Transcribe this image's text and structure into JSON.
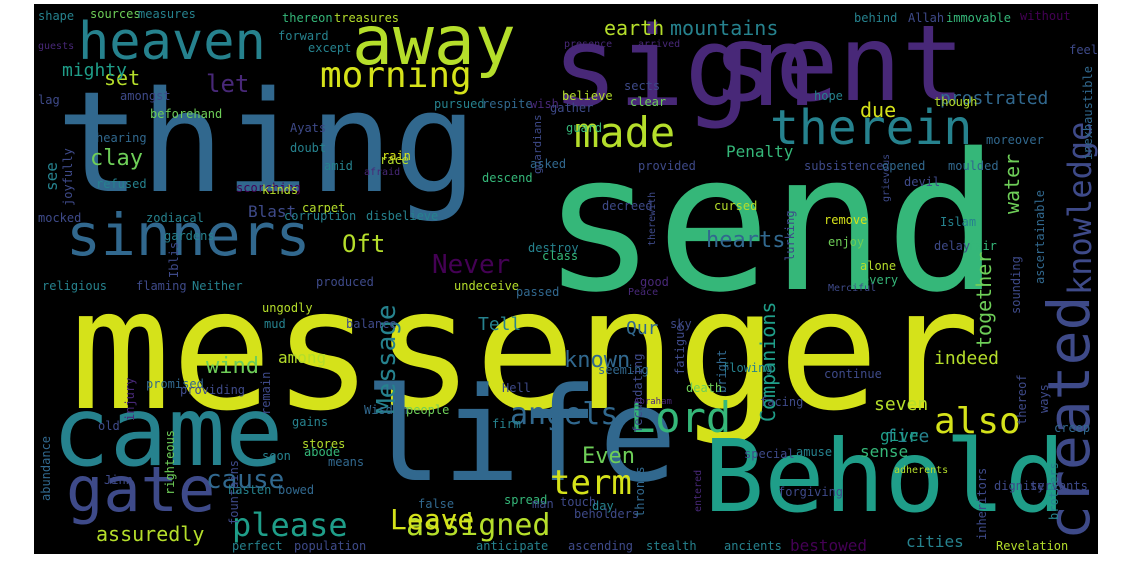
{
  "image": {
    "background": "#000000",
    "palette": {
      "dark_purple": "#440154",
      "purple": "#482878",
      "indigo": "#3e4a89",
      "steel_blue": "#31688e",
      "teal": "#26828e",
      "sea_green": "#1f9e89",
      "green": "#35b779",
      "light_green": "#6ece58",
      "yellow_green": "#b5de2b",
      "yellow": "#d5e21a"
    },
    "words": [
      {
        "text": "messenger",
        "color": "#d5e21a"
      },
      {
        "text": "send",
        "color": "#35b779"
      },
      {
        "text": "thing",
        "color": "#31688e"
      },
      {
        "text": "sign",
        "color": "#482878"
      },
      {
        "text": "sent",
        "color": "#482878"
      },
      {
        "text": "life",
        "color": "#31688e"
      },
      {
        "text": "came",
        "color": "#26828e"
      },
      {
        "text": "Behold",
        "color": "#1f9e89"
      },
      {
        "text": "away",
        "color": "#b5de2b"
      },
      {
        "text": "heaven",
        "color": "#26828e"
      },
      {
        "text": "sinners",
        "color": "#31688e"
      },
      {
        "text": "gate",
        "color": "#3e4a89"
      },
      {
        "text": "created",
        "color": "#3e4a89"
      },
      {
        "text": "therein",
        "color": "#26828e"
      },
      {
        "text": "Lord",
        "color": "#35b779"
      },
      {
        "text": "made",
        "color": "#b5de2b"
      },
      {
        "text": "morning",
        "color": "#d5e21a"
      },
      {
        "text": "knowledge",
        "color": "#3e4a89"
      },
      {
        "text": "also",
        "color": "#d5e21a"
      },
      {
        "text": "angels",
        "color": "#31688e"
      },
      {
        "text": "Message",
        "color": "#26828e"
      },
      {
        "text": "term",
        "color": "#d5e21a"
      },
      {
        "text": "please",
        "color": "#1f9e89"
      },
      {
        "text": "assigned",
        "color": "#b5de2b"
      },
      {
        "text": "Leave",
        "color": "#d5e21a"
      },
      {
        "text": "cause",
        "color": "#31688e"
      },
      {
        "text": "Never",
        "color": "#440154"
      },
      {
        "text": "let",
        "color": "#482878"
      },
      {
        "text": "clay",
        "color": "#6ece58"
      },
      {
        "text": "earth",
        "color": "#b5de2b"
      },
      {
        "text": "mountains",
        "color": "#26828e"
      },
      {
        "text": "set",
        "color": "#b5de2b"
      },
      {
        "text": "mighty",
        "color": "#1f9e89"
      },
      {
        "text": "see",
        "color": "#26828e"
      },
      {
        "text": "due",
        "color": "#d5e21a"
      },
      {
        "text": "prostrated",
        "color": "#31688e"
      },
      {
        "text": "water",
        "color": "#6ece58"
      },
      {
        "text": "hearts",
        "color": "#31688e"
      },
      {
        "text": "Oft",
        "color": "#b5de2b"
      },
      {
        "text": "together",
        "color": "#6ece58"
      },
      {
        "text": "known",
        "color": "#31688e"
      },
      {
        "text": "Companions",
        "color": "#1f9e89"
      },
      {
        "text": "wind",
        "color": "#6ece58"
      },
      {
        "text": "Tell",
        "color": "#26828e"
      },
      {
        "text": "Qur",
        "color": "#31688e"
      },
      {
        "text": "indeed",
        "color": "#b5de2b"
      },
      {
        "text": "seven",
        "color": "#b5de2b"
      },
      {
        "text": "fire",
        "color": "#26828e"
      },
      {
        "text": "give",
        "color": "#1f9e89"
      },
      {
        "text": "Even",
        "color": "#6ece58"
      },
      {
        "text": "assuredly",
        "color": "#b5de2b"
      },
      {
        "text": "sense",
        "color": "#35b779"
      },
      {
        "text": "bestowed",
        "color": "#440154"
      },
      {
        "text": "cities",
        "color": "#26828e"
      },
      {
        "text": "Blast",
        "color": "#3e4a89"
      },
      {
        "text": "among",
        "color": "#b5de2b"
      },
      {
        "text": "Penalty",
        "color": "#35b779"
      },
      {
        "text": "shape",
        "color": "#26828e"
      },
      {
        "text": "sources",
        "color": "#6ece58"
      },
      {
        "text": "measures",
        "color": "#26828e"
      },
      {
        "text": "thereon",
        "color": "#35b779"
      },
      {
        "text": "treasures",
        "color": "#b5de2b"
      },
      {
        "text": "behind",
        "color": "#26828e"
      },
      {
        "text": "Allah",
        "color": "#3e4a89"
      },
      {
        "text": "immovable",
        "color": "#35b779"
      },
      {
        "text": "without",
        "color": "#440154"
      },
      {
        "text": "forward",
        "color": "#26828e"
      },
      {
        "text": "except",
        "color": "#26828e"
      },
      {
        "text": "arrived",
        "color": "#482878"
      },
      {
        "text": "feel",
        "color": "#3e4a89"
      },
      {
        "text": "inexhaustible",
        "color": "#31688e"
      },
      {
        "text": "sects",
        "color": "#3e4a89"
      },
      {
        "text": "believe",
        "color": "#b5de2b"
      },
      {
        "text": "hope",
        "color": "#26828e"
      },
      {
        "text": "clear",
        "color": "#6ece58"
      },
      {
        "text": "amongst",
        "color": "#3e4a89"
      },
      {
        "text": "pursued",
        "color": "#26828e"
      },
      {
        "text": "respite",
        "color": "#31688e"
      },
      {
        "text": "wish",
        "color": "#482878"
      },
      {
        "text": "gather",
        "color": "#3e4a89"
      },
      {
        "text": "grievous",
        "color": "#3e4a89"
      },
      {
        "text": "though",
        "color": "#b5de2b"
      },
      {
        "text": "moreover",
        "color": "#31688e"
      },
      {
        "text": "beforehand",
        "color": "#6ece58"
      },
      {
        "text": "hearing",
        "color": "#31688e"
      },
      {
        "text": "Ayats",
        "color": "#3e4a89"
      },
      {
        "text": "guardians",
        "color": "#3e4a89"
      },
      {
        "text": "guard",
        "color": "#35b779"
      },
      {
        "text": "asked",
        "color": "#31688e"
      },
      {
        "text": "provided",
        "color": "#3e4a89"
      },
      {
        "text": "subsistence",
        "color": "#3e4a89"
      },
      {
        "text": "opened",
        "color": "#31688e"
      },
      {
        "text": "moulded",
        "color": "#31688e"
      },
      {
        "text": "doubt",
        "color": "#26828e"
      },
      {
        "text": "amid",
        "color": "#26828e"
      },
      {
        "text": "race",
        "color": "#b5de2b"
      },
      {
        "text": "rain",
        "color": "#d5e21a"
      },
      {
        "text": "refused",
        "color": "#26828e"
      },
      {
        "text": "scorching",
        "color": "#440154"
      },
      {
        "text": "afraid",
        "color": "#482878"
      },
      {
        "text": "descend",
        "color": "#35b779"
      },
      {
        "text": "devil",
        "color": "#3e4a89"
      },
      {
        "text": "kinds",
        "color": "#b5de2b"
      },
      {
        "text": "carpet",
        "color": "#b5de2b"
      },
      {
        "text": "decreed",
        "color": "#3e4a89"
      },
      {
        "text": "cursed",
        "color": "#b5de2b"
      },
      {
        "text": "ascertainable",
        "color": "#31688e"
      },
      {
        "text": "mocked",
        "color": "#3e4a89"
      },
      {
        "text": "zodiacal",
        "color": "#26828e"
      },
      {
        "text": "corruption",
        "color": "#26828e"
      },
      {
        "text": "disbelieve",
        "color": "#26828e"
      },
      {
        "text": "therewith",
        "color": "#3e4a89"
      },
      {
        "text": "remove",
        "color": "#d5e21a"
      },
      {
        "text": "Islam",
        "color": "#26828e"
      },
      {
        "text": "fair",
        "color": "#35b779"
      },
      {
        "text": "gardens",
        "color": "#26828e"
      },
      {
        "text": "lurking",
        "color": "#3e4a89"
      },
      {
        "text": "enjoy",
        "color": "#6ece58"
      },
      {
        "text": "delay",
        "color": "#3e4a89"
      },
      {
        "text": "destroy",
        "color": "#26828e"
      },
      {
        "text": "class",
        "color": "#35b779"
      },
      {
        "text": "Iblis",
        "color": "#3e4a89"
      },
      {
        "text": "alone",
        "color": "#b5de2b"
      },
      {
        "text": "every",
        "color": "#35b779"
      },
      {
        "text": "sounding",
        "color": "#3e4a89"
      },
      {
        "text": "religious",
        "color": "#26828e"
      },
      {
        "text": "flaming",
        "color": "#3e4a89"
      },
      {
        "text": "Neither",
        "color": "#26828e"
      },
      {
        "text": "produced",
        "color": "#3e4a89"
      },
      {
        "text": "undeceive",
        "color": "#b5de2b"
      },
      {
        "text": "passed",
        "color": "#31688e"
      },
      {
        "text": "good",
        "color": "#482878"
      },
      {
        "text": "Peace",
        "color": "#482878"
      },
      {
        "text": "Merciful",
        "color": "#3e4a89"
      },
      {
        "text": "ungodly",
        "color": "#b5de2b"
      },
      {
        "text": "mud",
        "color": "#26828e"
      },
      {
        "text": "balance",
        "color": "#3e4a89"
      },
      {
        "text": "sky",
        "color": "#3e4a89"
      },
      {
        "text": "injury",
        "color": "#482878"
      },
      {
        "text": "seeming",
        "color": "#31688e"
      },
      {
        "text": "fecundating",
        "color": "#3e4a89"
      },
      {
        "text": "fatigue",
        "color": "#3e4a89"
      },
      {
        "text": "flowing",
        "color": "#26828e"
      },
      {
        "text": "bright",
        "color": "#31688e"
      },
      {
        "text": "continue",
        "color": "#3e4a89"
      },
      {
        "text": "thereof",
        "color": "#3e4a89"
      },
      {
        "text": "ways",
        "color": "#3e4a89"
      },
      {
        "text": "promised",
        "color": "#31688e"
      },
      {
        "text": "providing",
        "color": "#3e4a89"
      },
      {
        "text": "remain",
        "color": "#3e4a89"
      },
      {
        "text": "Hell",
        "color": "#3e4a89"
      },
      {
        "text": "death",
        "color": "#6ece58"
      },
      {
        "text": "facing",
        "color": "#3e4a89"
      },
      {
        "text": "abundance",
        "color": "#31688e"
      },
      {
        "text": "gains",
        "color": "#26828e"
      },
      {
        "text": "Wisdom",
        "color": "#31688e"
      },
      {
        "text": "people",
        "color": "#6ece58"
      },
      {
        "text": "firm",
        "color": "#26828e"
      },
      {
        "text": "Abraham",
        "color": "#482878"
      },
      {
        "text": "creep",
        "color": "#31688e"
      },
      {
        "text": "old",
        "color": "#3e4a89"
      },
      {
        "text": "righteous",
        "color": "#6ece58"
      },
      {
        "text": "stores",
        "color": "#b5de2b"
      },
      {
        "text": "abode",
        "color": "#35b779"
      },
      {
        "text": "soon",
        "color": "#26828e"
      },
      {
        "text": "means",
        "color": "#31688e"
      },
      {
        "text": "special",
        "color": "#3e4a89"
      },
      {
        "text": "amuse",
        "color": "#26828e"
      },
      {
        "text": "adherents",
        "color": "#b5de2b"
      },
      {
        "text": "brothers",
        "color": "#26828e"
      },
      {
        "text": "fountains",
        "color": "#3e4a89"
      },
      {
        "text": "Jinn",
        "color": "#3e4a89"
      },
      {
        "text": "hasten",
        "color": "#26828e"
      },
      {
        "text": "bowed",
        "color": "#31688e"
      },
      {
        "text": "false",
        "color": "#31688e"
      },
      {
        "text": "spread",
        "color": "#35b779"
      },
      {
        "text": "man",
        "color": "#3e4a89"
      },
      {
        "text": "touch",
        "color": "#3e4a89"
      },
      {
        "text": "day",
        "color": "#26828e"
      },
      {
        "text": "beholders",
        "color": "#3e4a89"
      },
      {
        "text": "forgiving",
        "color": "#3e4a89"
      },
      {
        "text": "thrones",
        "color": "#31688e"
      },
      {
        "text": "entered",
        "color": "#482878"
      },
      {
        "text": "inheritors",
        "color": "#3e4a89"
      },
      {
        "text": "dignity",
        "color": "#3e4a89"
      },
      {
        "text": "servants",
        "color": "#3e4a89"
      },
      {
        "text": "perfect",
        "color": "#26828e"
      },
      {
        "text": "population",
        "color": "#3e4a89"
      },
      {
        "text": "anticipate",
        "color": "#26828e"
      },
      {
        "text": "ascending",
        "color": "#3e4a89"
      },
      {
        "text": "stealth",
        "color": "#26828e"
      },
      {
        "text": "ancients",
        "color": "#26828e"
      },
      {
        "text": "Revelation",
        "color": "#b5de2b"
      },
      {
        "text": "guests",
        "color": "#482878"
      },
      {
        "text": "lag",
        "color": "#3e4a89"
      },
      {
        "text": "joyfully",
        "color": "#3e4a89"
      },
      {
        "text": "presence",
        "color": "#482878"
      }
    ]
  }
}
